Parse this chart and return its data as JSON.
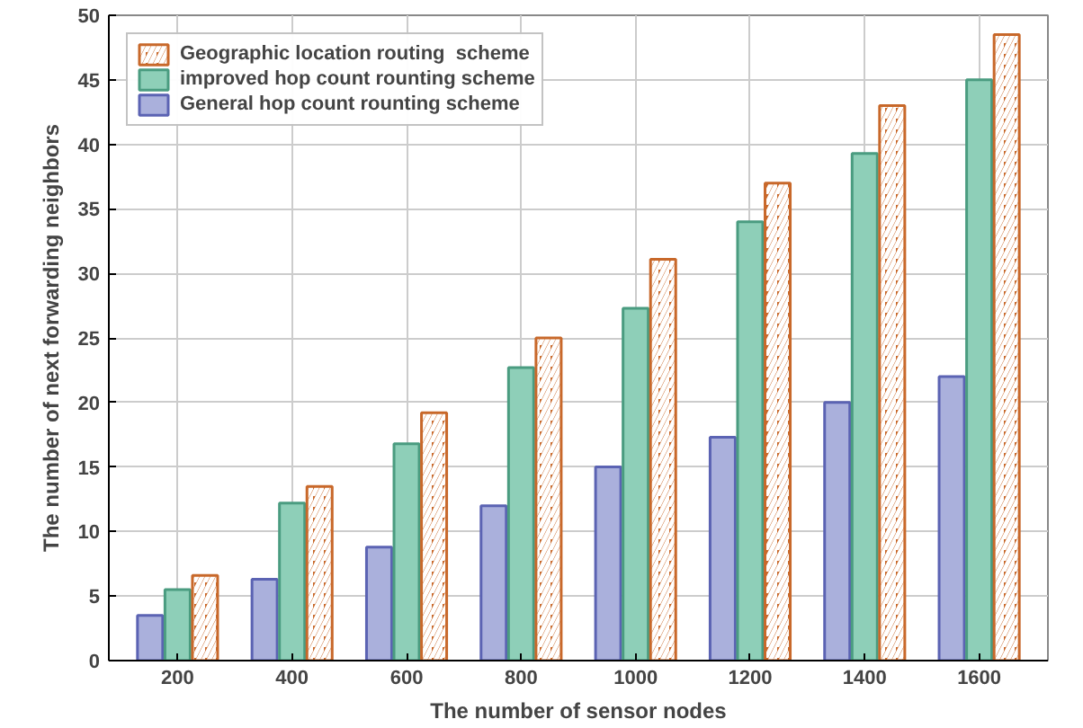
{
  "chart_data": {
    "type": "bar",
    "xlabel": "The number of sensor nodes",
    "ylabel": "The number of next forwarding neighbors",
    "categories": [
      "200",
      "400",
      "600",
      "800",
      "1000",
      "1200",
      "1400",
      "1600"
    ],
    "series": [
      {
        "name": "General hop count rounting scheme",
        "color": "#aab0dc",
        "values": [
          3.5,
          6.3,
          8.8,
          12,
          15,
          17.3,
          20,
          22
        ]
      },
      {
        "name": "improved hop count rounting scheme",
        "color": "#8ecfb8",
        "values": [
          5.5,
          12.2,
          16.8,
          22.7,
          27.3,
          34,
          39.3,
          45
        ]
      },
      {
        "name": "Geographic location routing  scheme",
        "color": "#c8682a",
        "values": [
          6.6,
          13.5,
          19.2,
          25,
          31.1,
          37,
          43,
          48.5
        ]
      }
    ],
    "ylim": [
      0,
      50
    ],
    "yticks": [
      0,
      5,
      10,
      15,
      20,
      25,
      30,
      35,
      40,
      45,
      50
    ],
    "grid": true,
    "legend": "top left"
  }
}
